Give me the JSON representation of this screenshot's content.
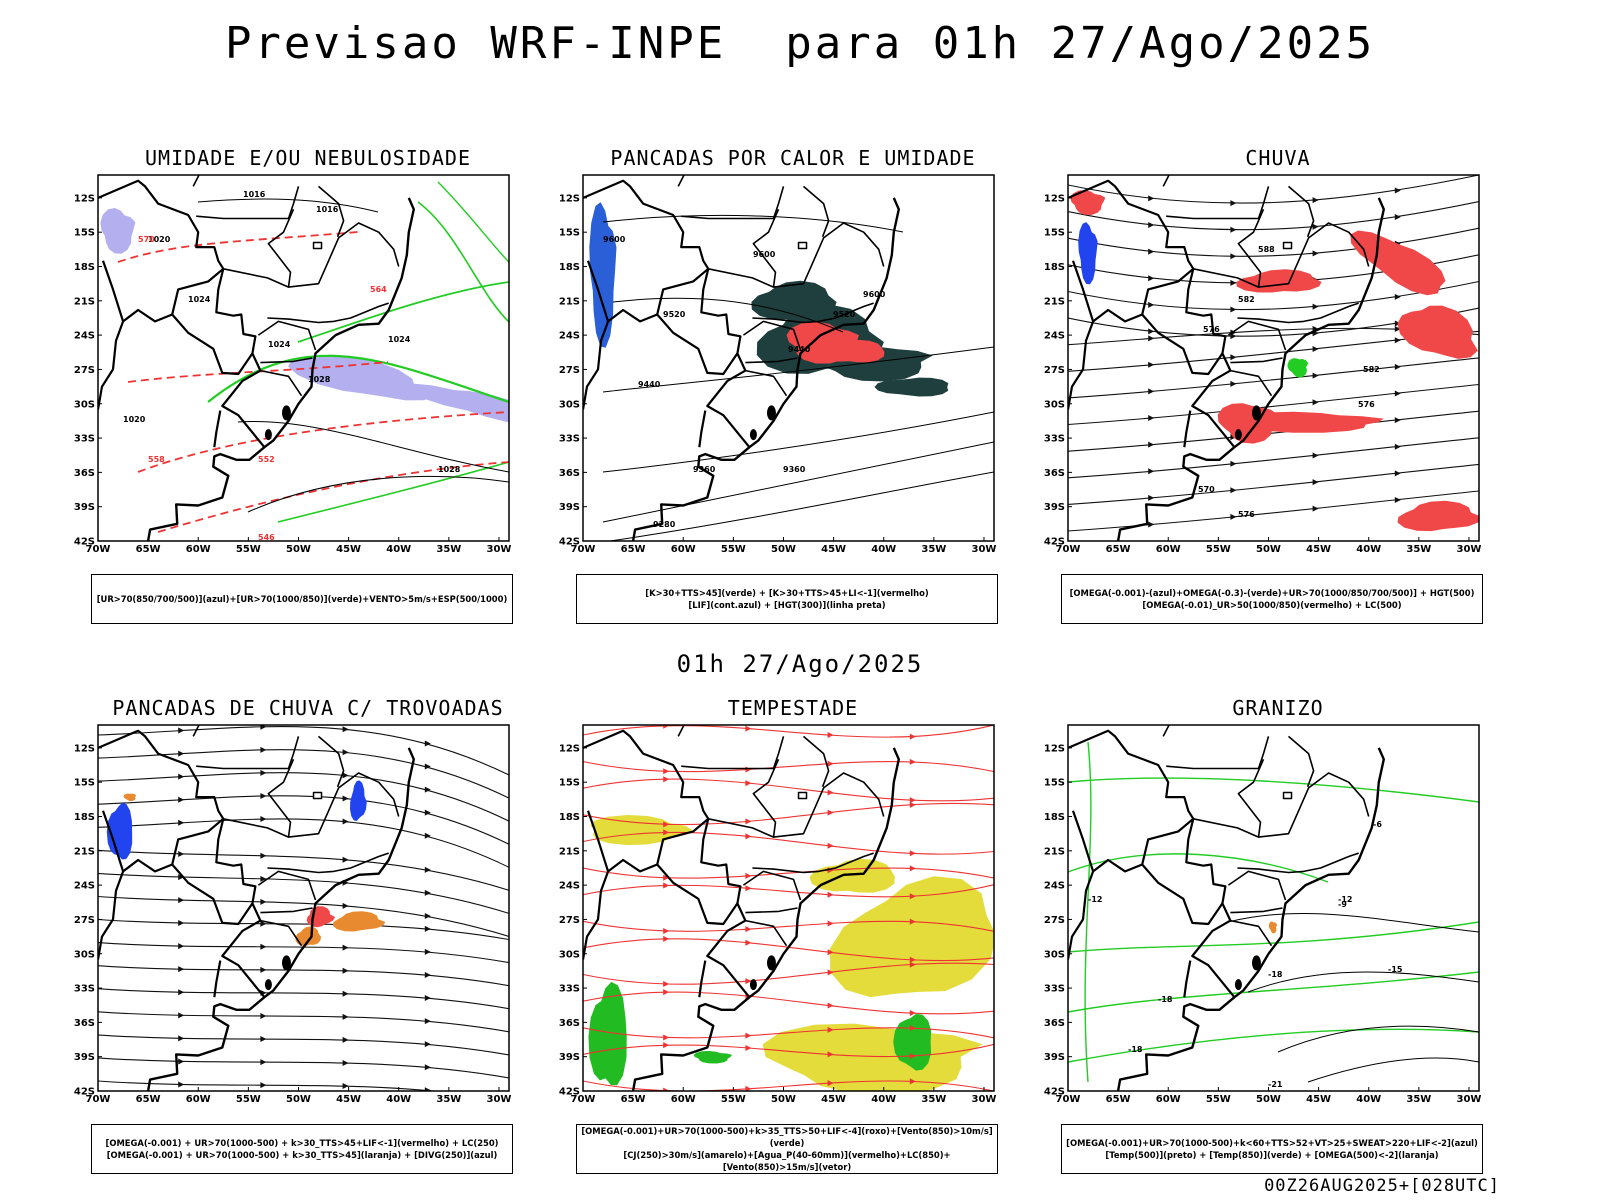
{
  "header": {
    "title": "Previsao WRF-INPE  para 01h 27/Ago/2025",
    "mid_title": "01h 27/Ago/2025",
    "timestamp": "00Z26AUG2025+[028UTC]"
  },
  "axes": {
    "lat_labels": [
      "12S",
      "15S",
      "18S",
      "21S",
      "24S",
      "27S",
      "30S",
      "33S",
      "36S",
      "39S",
      "42S"
    ],
    "lon_labels": [
      "70W",
      "65W",
      "60W",
      "55W",
      "50W",
      "45W",
      "40W",
      "35W",
      "30W"
    ]
  },
  "panels": [
    {
      "id": "umidade",
      "title": "UMIDADE E/OU NEBULOSIDADE",
      "legend": [
        "[UR>70(850/700/500)](azul)+[UR>70(1000/850)](verde)+VENTO>5m/s+ESP(500/1000)"
      ],
      "contour_labels": [
        "1016",
        "1016",
        "1020",
        "1024",
        "1024",
        "1024",
        "1028",
        "1028",
        "1020",
        "570",
        "564",
        "558",
        "552",
        "546"
      ]
    },
    {
      "id": "pancadas-calor",
      "title": "PANCADAS POR CALOR E UMIDADE",
      "legend": [
        "[K>30+TTS>45](verde) + [K>30+TTS>45+LI<-1](vermelho)",
        "[LIF](cont.azul) + [HGT(300)](linha preta)"
      ],
      "contour_labels": [
        "9600",
        "9600",
        "9600",
        "9520",
        "9520",
        "9440",
        "9440",
        "9360",
        "9360",
        "9280"
      ]
    },
    {
      "id": "chuva",
      "title": "CHUVA",
      "legend": [
        "[OMEGA(-0.001)-(azul)+OMEGA(-0.3)-(verde)+UR>70(1000/850/700/500)] + HGT(500)",
        "[OMEGA(-0.01)_UR>50(1000/850)(vermelho) + LC(500)"
      ],
      "contour_labels": [
        "588",
        "582",
        "576",
        "582",
        "576",
        "570",
        "576"
      ]
    },
    {
      "id": "trovoadas",
      "title": "PANCADAS DE CHUVA C/ TROVOADAS",
      "legend": [
        "[OMEGA(-0.001) + UR>70(1000-500) + k>30_TTS>45+LIF<-1](vermelho) + LC(250)",
        "[OMEGA(-0.001) + UR>70(1000-500) + k>30_TTS>45](laranja) + [DIVG(250)](azul)"
      ],
      "contour_labels": []
    },
    {
      "id": "tempestade",
      "title": "TEMPESTADE",
      "legend": [
        "[OMEGA(-0.001)+UR>70(1000-500)+k>35_TTS>50+LIF<-4](roxo)+[Vento(850)>10m/s](verde)",
        "[CJ(250)>30m/s](amarelo)+[Agua_P(40-60mm)](vermelho)+LC(850)+[Vento(850)>15m/s](vetor)"
      ],
      "contour_labels": []
    },
    {
      "id": "granizo",
      "title": "GRANIZO",
      "legend": [
        "[OMEGA(-0.001)+UR>70(1000-500)+k<60+TTS>52+VT>25+SWEAT>220+LIF<-2](azul)",
        "[Temp(500)](preto) + [Temp(850)](verde) + [OMEGA(500)<-2](laranja)"
      ],
      "contour_labels": [
        "-6",
        "-12",
        "-12",
        "-18",
        "-18",
        "-18",
        "-21",
        "-9",
        "-15"
      ]
    }
  ],
  "colors": {
    "moisture_blue": "#b4b0f0",
    "moisture_green": "#22cc22",
    "red": "#f04848",
    "dark_teal": "#1f3f3f",
    "yellow": "#e3dc3a",
    "orange": "#e88a30",
    "blue": "#2244ee"
  }
}
